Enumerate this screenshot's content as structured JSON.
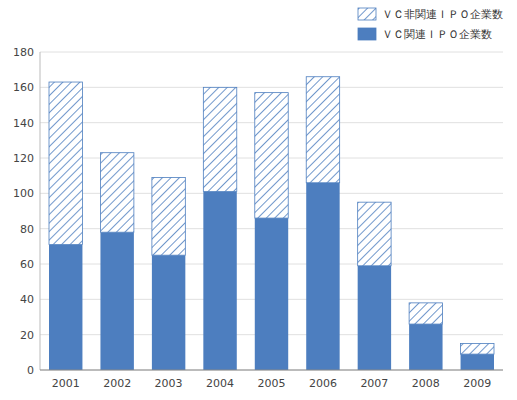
{
  "chart_data": {
    "type": "bar",
    "stacked": true,
    "categories": [
      "2001",
      "2002",
      "2003",
      "2004",
      "2005",
      "2006",
      "2007",
      "2008",
      "2009"
    ],
    "series": [
      {
        "name": "ＶＣ関連ＩＰＯ企業数",
        "color": "#4d7ebf",
        "values": [
          71,
          78,
          65,
          101,
          86,
          106,
          59,
          26,
          9
        ]
      },
      {
        "name": "ＶＣ非関連ＩＰＯ企業数",
        "color": "#4d7ebf",
        "values": [
          92,
          45,
          44,
          59,
          71,
          60,
          36,
          12,
          6
        ]
      }
    ],
    "ylim": [
      0,
      180
    ],
    "yticks": [
      0,
      20,
      40,
      60,
      80,
      100,
      120,
      140,
      160,
      180
    ],
    "grid": true,
    "legend": "upper right"
  }
}
